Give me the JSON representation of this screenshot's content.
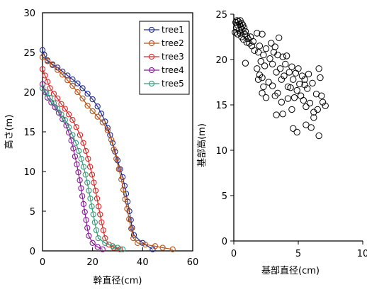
{
  "chart_data": [
    {
      "type": "line",
      "xlabel": "幹直径(cm)",
      "ylabel": "高さ(m)",
      "xlim": [
        0,
        60
      ],
      "ylim": [
        0,
        30
      ],
      "xticks": [
        0,
        20,
        40,
        60
      ],
      "yticks": [
        0,
        5,
        10,
        15,
        20,
        25,
        30
      ],
      "legend_position": "top-right",
      "series": [
        {
          "name": "tree1",
          "color": "#1f2a8c",
          "points": [
            [
              0,
              25.3
            ],
            [
              0.7,
              24.7
            ],
            [
              2,
              24.0
            ],
            [
              4,
              23.5
            ],
            [
              6,
              23.1
            ],
            [
              8,
              22.6
            ],
            [
              10,
              22.1
            ],
            [
              12,
              21.6
            ],
            [
              14,
              21.1
            ],
            [
              16,
              20.5
            ],
            [
              18,
              19.8
            ],
            [
              20,
              19.1
            ],
            [
              22,
              18.2
            ],
            [
              23.5,
              17.3
            ],
            [
              25,
              16.3
            ],
            [
              26,
              15.5
            ],
            [
              27,
              14.6
            ],
            [
              28,
              13.6
            ],
            [
              29,
              12.5
            ],
            [
              30,
              11.4
            ],
            [
              31,
              10.3
            ],
            [
              32,
              9.3
            ],
            [
              32.8,
              8.2
            ],
            [
              33.4,
              7.2
            ],
            [
              34,
              6.2
            ],
            [
              34.7,
              5.0
            ],
            [
              35.3,
              3.9
            ],
            [
              35.8,
              2.9
            ],
            [
              36.5,
              2.0
            ],
            [
              40,
              1.0
            ],
            [
              44,
              0.2
            ]
          ]
        },
        {
          "name": "tree2",
          "color": "#b5531a",
          "points": [
            [
              0,
              24.4
            ],
            [
              2,
              23.9
            ],
            [
              4,
              23.4
            ],
            [
              6,
              22.8
            ],
            [
              8,
              22.2
            ],
            [
              10,
              21.5
            ],
            [
              12,
              20.8
            ],
            [
              14,
              20.0
            ],
            [
              16,
              19.2
            ],
            [
              18,
              18.3
            ],
            [
              20,
              17.6
            ],
            [
              22,
              16.9
            ],
            [
              24,
              16.2
            ],
            [
              26,
              15.2
            ],
            [
              27.5,
              14.0
            ],
            [
              28.5,
              12.8
            ],
            [
              29.5,
              11.6
            ],
            [
              30.5,
              10.3
            ],
            [
              31.5,
              9.0
            ],
            [
              32.3,
              7.7
            ],
            [
              33,
              6.5
            ],
            [
              33.8,
              5.3
            ],
            [
              34.6,
              4.0
            ],
            [
              35.4,
              2.8
            ],
            [
              36.3,
              1.6
            ],
            [
              38,
              1.0
            ],
            [
              41,
              0.8
            ],
            [
              45,
              0.6
            ],
            [
              48,
              0.4
            ],
            [
              52,
              0.2
            ]
          ]
        },
        {
          "name": "tree3",
          "color": "#d62a2a",
          "points": [
            [
              0,
              22.9
            ],
            [
              1,
              22.1
            ],
            [
              2,
              21.3
            ],
            [
              3,
              20.5
            ],
            [
              4.5,
              19.8
            ],
            [
              6,
              19.2
            ],
            [
              7.5,
              18.5
            ],
            [
              9,
              17.9
            ],
            [
              10.5,
              17.2
            ],
            [
              12,
              16.5
            ],
            [
              13.5,
              15.6
            ],
            [
              15,
              14.6
            ],
            [
              16.3,
              13.6
            ],
            [
              17.3,
              12.6
            ],
            [
              18.2,
              11.6
            ],
            [
              19,
              10.6
            ],
            [
              19.8,
              9.6
            ],
            [
              20.5,
              8.6
            ],
            [
              21.2,
              7.6
            ],
            [
              21.8,
              6.6
            ],
            [
              22.4,
              5.6
            ],
            [
              23,
              4.6
            ],
            [
              23.6,
              3.6
            ],
            [
              24.3,
              2.6
            ],
            [
              25,
              1.6
            ],
            [
              26.5,
              0.8
            ],
            [
              28.5,
              0.4
            ],
            [
              31,
              0.2
            ]
          ]
        },
        {
          "name": "tree4",
          "color": "#8a1a9a",
          "points": [
            [
              0,
              21.0
            ],
            [
              1,
              20.0
            ],
            [
              2,
              19.3
            ],
            [
              3.5,
              18.7
            ],
            [
              5,
              18.1
            ],
            [
              6.5,
              17.4
            ],
            [
              8,
              16.6
            ],
            [
              9.5,
              15.8
            ],
            [
              10.5,
              14.9
            ],
            [
              11.5,
              13.9
            ],
            [
              12.3,
              12.9
            ],
            [
              13,
              11.9
            ],
            [
              13.7,
              10.9
            ],
            [
              14.3,
              9.9
            ],
            [
              14.9,
              8.9
            ],
            [
              15.4,
              7.9
            ],
            [
              15.9,
              6.9
            ],
            [
              16.4,
              5.9
            ],
            [
              16.9,
              4.9
            ],
            [
              17.4,
              3.9
            ],
            [
              17.9,
              2.9
            ],
            [
              18.5,
              1.9
            ],
            [
              20,
              1.0
            ],
            [
              22,
              0.5
            ],
            [
              24,
              0.2
            ]
          ]
        },
        {
          "name": "tree5",
          "color": "#3a9a7a",
          "points": [
            [
              0,
              20.5
            ],
            [
              1.5,
              19.9
            ],
            [
              3,
              19.3
            ],
            [
              4.5,
              18.6
            ],
            [
              6,
              17.9
            ],
            [
              7.5,
              17.2
            ],
            [
              9,
              16.5
            ],
            [
              10.5,
              15.6
            ],
            [
              12,
              14.6
            ],
            [
              13.3,
              13.6
            ],
            [
              14.5,
              12.6
            ],
            [
              15.5,
              11.6
            ],
            [
              16.4,
              10.6
            ],
            [
              17.2,
              9.6
            ],
            [
              17.9,
              8.6
            ],
            [
              18.5,
              7.6
            ],
            [
              19.1,
              6.6
            ],
            [
              19.7,
              5.6
            ],
            [
              20.3,
              4.6
            ],
            [
              20.9,
              3.6
            ],
            [
              21.5,
              2.6
            ],
            [
              22.3,
              1.6
            ],
            [
              25,
              1.0
            ],
            [
              28,
              0.6
            ],
            [
              30,
              0.4
            ],
            [
              32,
              0.2
            ]
          ]
        }
      ]
    },
    {
      "type": "scatter",
      "xlabel": "基部直径(cm)",
      "ylabel": "基部高(m)",
      "xlim": [
        0,
        10
      ],
      "ylim": [
        0,
        25
      ],
      "xticks": [
        0,
        5,
        10
      ],
      "yticks": [
        0,
        5,
        10,
        15,
        20,
        25
      ],
      "series": [
        {
          "points": [
            [
              0.1,
              23.0
            ],
            [
              0.15,
              24.1
            ],
            [
              0.2,
              23.5
            ],
            [
              0.25,
              24.3
            ],
            [
              0.3,
              23.8
            ],
            [
              0.3,
              22.8
            ],
            [
              0.35,
              24.2
            ],
            [
              0.4,
              23.2
            ],
            [
              0.45,
              23.9
            ],
            [
              0.5,
              24.3
            ],
            [
              0.5,
              22.9
            ],
            [
              0.55,
              23.6
            ],
            [
              0.6,
              24.0
            ],
            [
              0.6,
              22.5
            ],
            [
              0.65,
              23.3
            ],
            [
              0.7,
              23.8
            ],
            [
              0.75,
              22.2
            ],
            [
              0.8,
              23.5
            ],
            [
              0.85,
              22.8
            ],
            [
              0.9,
              23.1
            ],
            [
              1.0,
              22.6
            ],
            [
              1.0,
              21.9
            ],
            [
              1.1,
              22.3
            ],
            [
              1.2,
              21.8
            ],
            [
              1.3,
              22.5
            ],
            [
              1.4,
              21.5
            ],
            [
              1.5,
              22.0
            ],
            [
              0.9,
              19.6
            ],
            [
              1.8,
              22.9
            ],
            [
              1.6,
              21.0
            ],
            [
              2.2,
              22.8
            ],
            [
              1.9,
              20.8
            ],
            [
              2.0,
              21.5
            ],
            [
              2.1,
              19.8
            ],
            [
              2.3,
              20.5
            ],
            [
              2.5,
              21.2
            ],
            [
              2.4,
              19.3
            ],
            [
              1.8,
              19.0
            ],
            [
              1.9,
              17.8
            ],
            [
              2.0,
              18.3
            ],
            [
              2.2,
              18.0
            ],
            [
              2.3,
              17.0
            ],
            [
              2.2,
              16.3
            ],
            [
              2.5,
              15.8
            ],
            [
              2.7,
              17.5
            ],
            [
              2.8,
              20.1
            ],
            [
              2.9,
              21.8
            ],
            [
              3.0,
              19.5
            ],
            [
              3.1,
              20.8
            ],
            [
              3.2,
              21.4
            ],
            [
              3.3,
              18.6
            ],
            [
              3.4,
              16.3
            ],
            [
              3.0,
              17.1
            ],
            [
              3.2,
              16.0
            ],
            [
              3.4,
              20.5
            ],
            [
              3.5,
              22.4
            ],
            [
              3.6,
              19.0
            ],
            [
              3.7,
              17.8
            ],
            [
              3.8,
              20.3
            ],
            [
              3.9,
              18.2
            ],
            [
              3.7,
              15.3
            ],
            [
              3.8,
              14.0
            ],
            [
              3.3,
              13.9
            ],
            [
              4.0,
              19.5
            ],
            [
              4.1,
              20.4
            ],
            [
              4.2,
              17.0
            ],
            [
              4.3,
              18.6
            ],
            [
              4.2,
              15.7
            ],
            [
              4.4,
              16.9
            ],
            [
              4.5,
              19.2
            ],
            [
              4.6,
              17.8
            ],
            [
              4.7,
              15.8
            ],
            [
              4.5,
              14.5
            ],
            [
              4.6,
              12.4
            ],
            [
              4.9,
              12.0
            ],
            [
              4.8,
              18.5
            ],
            [
              4.9,
              16.6
            ],
            [
              5.0,
              19.0
            ],
            [
              5.1,
              17.3
            ],
            [
              5.2,
              16.0
            ],
            [
              5.3,
              18.2
            ],
            [
              5.4,
              15.5
            ],
            [
              5.5,
              17.8
            ],
            [
              5.6,
              14.8
            ],
            [
              5.5,
              17.2
            ],
            [
              5.7,
              16.8
            ],
            [
              5.8,
              18.4
            ],
            [
              5.9,
              15.2
            ],
            [
              6.0,
              12.5
            ],
            [
              6.1,
              17.4
            ],
            [
              6.2,
              14.2
            ],
            [
              6.4,
              16.2
            ],
            [
              6.5,
              14.5
            ],
            [
              6.6,
              19.0
            ],
            [
              6.7,
              18.0
            ],
            [
              6.6,
              11.6
            ],
            [
              6.8,
              16.0
            ],
            [
              6.9,
              15.3
            ],
            [
              7.1,
              14.9
            ],
            [
              5.6,
              12.8
            ],
            [
              6.2,
              13.6
            ]
          ]
        }
      ]
    }
  ]
}
